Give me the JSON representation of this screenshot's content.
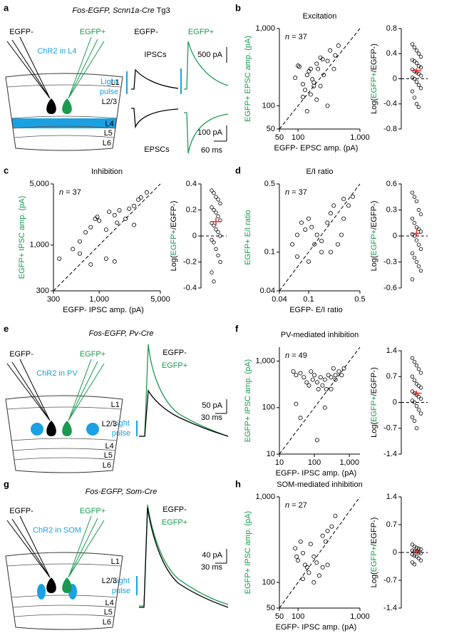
{
  "chart_data": [
    {
      "type": "scatter",
      "panel": "b",
      "title": "Excitation",
      "annotation": [
        "n",
        " = 37"
      ],
      "xlabel": "EGFP- EPSC amp. (pA)",
      "ylabel": "EGFP+ EPSC amp. (pA)",
      "log_scale": true,
      "identity_line": true,
      "xlim": [
        50,
        1000
      ],
      "ylim": [
        50,
        1000
      ],
      "xticks": [
        50,
        100,
        {
          "value": 1000,
          "label": "1,000"
        }
      ],
      "yticks": [
        50,
        100,
        {
          "value": 1000,
          "label": "1,000"
        }
      ],
      "x": [
        100,
        105,
        90,
        120,
        130,
        140,
        150,
        160,
        170,
        180,
        200,
        210,
        230,
        250,
        300,
        330,
        400,
        450,
        120,
        160,
        200,
        140,
        300,
        230,
        380,
        180,
        260
      ],
      "values": [
        330,
        320,
        230,
        190,
        160,
        250,
        280,
        300,
        220,
        180,
        350,
        300,
        420,
        400,
        380,
        520,
        450,
        600,
        130,
        140,
        120,
        85,
        100,
        180,
        300,
        200,
        250
      ]
    },
    {
      "type": "strip",
      "ylabel_parts": [
        "Log(",
        "EGFP+",
        "/EGFP-)"
      ],
      "ylim": [
        -0.8,
        0.8
      ],
      "yticks": [
        -0.8,
        -0.4,
        0,
        0.4,
        0.8
      ],
      "reference_line": 0,
      "mean": 0.13,
      "sem": 0.04,
      "values": [
        0.55,
        0.5,
        0.45,
        0.4,
        0.35,
        0.3,
        0.28,
        0.25,
        0.2,
        0.18,
        0.15,
        0.12,
        0.1,
        0.08,
        0.05,
        0.02,
        0,
        -0.05,
        -0.1,
        -0.15,
        -0.2,
        -0.3,
        -0.4,
        -0.45
      ]
    },
    {
      "type": "scatter",
      "panel": "c",
      "title": "Inhibition",
      "annotation": [
        "n",
        " = 37"
      ],
      "xlabel": "EGFP- IPSC amp. (pA)",
      "ylabel": "EGFP+ IPSC amp. (pA)",
      "log_scale": true,
      "identity_line": true,
      "xlim": [
        300,
        5000
      ],
      "ylim": [
        300,
        5000
      ],
      "xticks": [
        300,
        {
          "value": 1000,
          "label": "1,000"
        },
        {
          "value": 5000,
          "label": "5,000"
        }
      ],
      "yticks": [
        300,
        {
          "value": 1000,
          "label": "1,000"
        },
        {
          "value": 5000,
          "label": "5,000"
        }
      ],
      "x": [
        350,
        500,
        600,
        700,
        800,
        900,
        950,
        1000,
        1200,
        1300,
        1500,
        1600,
        1700,
        2000,
        2200,
        2500,
        2800,
        3000,
        3500,
        1200,
        1500,
        800,
        600,
        2500
      ],
      "values": [
        700,
        900,
        1100,
        1400,
        1600,
        2000,
        2100,
        1900,
        1500,
        2400,
        2200,
        1800,
        2500,
        2000,
        2600,
        2800,
        3300,
        3500,
        4000,
        700,
        650,
        600,
        800,
        1700
      ]
    },
    {
      "type": "strip",
      "ylabel_parts": [
        "Log(",
        "EGFP+",
        "/EGFP-)"
      ],
      "ylim": [
        -0.4,
        0.4
      ],
      "yticks": [
        -0.4,
        -0.2,
        0,
        0.2,
        0.4
      ],
      "reference_line": 0,
      "mean": 0.11,
      "sem": 0.03,
      "values": [
        0.35,
        0.33,
        0.3,
        0.28,
        0.25,
        0.22,
        0.2,
        0.18,
        0.15,
        0.12,
        0.1,
        0.08,
        0.05,
        0.03,
        0,
        -0.03,
        -0.05,
        -0.1,
        -0.15,
        -0.2,
        -0.28,
        -0.35
      ]
    },
    {
      "type": "scatter",
      "panel": "d",
      "title": "E/I ratio",
      "annotation": [
        "n",
        " = 37"
      ],
      "xlabel": "EGFP- E/I ratio",
      "ylabel": "EGFP+ E/I ratio",
      "log_scale": true,
      "identity_line": true,
      "xlim": [
        0.04,
        0.5
      ],
      "ylim": [
        0.04,
        0.5
      ],
      "xticks": [
        0.04,
        0.1,
        0.5
      ],
      "yticks": [
        0.04,
        0.1,
        0.5
      ],
      "x": [
        0.07,
        0.08,
        0.09,
        0.1,
        0.11,
        0.12,
        0.13,
        0.15,
        0.18,
        0.2,
        0.22,
        0.25,
        0.3,
        0.35,
        0.4,
        0.06,
        0.07,
        0.1,
        0.15,
        0.2,
        0.28,
        0.3
      ],
      "values": [
        0.15,
        0.2,
        0.17,
        0.22,
        0.18,
        0.12,
        0.15,
        0.1,
        0.2,
        0.25,
        0.3,
        0.12,
        0.35,
        0.3,
        0.37,
        0.12,
        0.09,
        0.08,
        0.13,
        0.1,
        0.15,
        0.22
      ]
    },
    {
      "type": "strip",
      "ylabel_parts": [
        "Log(",
        "EGFP+",
        "/EGFP-)"
      ],
      "ylim": [
        -0.6,
        0.6
      ],
      "yticks": [
        -0.6,
        -0.3,
        0,
        0.3,
        0.6
      ],
      "reference_line": 0,
      "mean": 0.03,
      "sem": 0.04,
      "values": [
        0.5,
        0.45,
        0.4,
        0.3,
        0.25,
        0.2,
        0.15,
        0.1,
        0.08,
        0.05,
        0.02,
        0,
        -0.05,
        -0.1,
        -0.15,
        -0.2,
        -0.25,
        -0.3,
        -0.35,
        -0.4,
        -0.5
      ]
    },
    {
      "type": "scatter",
      "panel": "f",
      "title": "PV-mediated inhibition",
      "annotation": [
        "n",
        " = 49"
      ],
      "xlabel": "EGFP- IPSC amp. (pA)",
      "ylabel": "EGFP+ IPSC amp. (pA)",
      "log_scale": true,
      "identity_line": true,
      "xlim": [
        10,
        2000
      ],
      "ylim": [
        10,
        2000
      ],
      "xticks": [
        10,
        100,
        {
          "value": 1000,
          "label": "1,000"
        }
      ],
      "yticks": [
        10,
        100,
        {
          "value": 1000,
          "label": "1,000"
        }
      ],
      "x": [
        25,
        30,
        40,
        50,
        60,
        70,
        80,
        90,
        100,
        120,
        130,
        150,
        170,
        200,
        220,
        250,
        300,
        350,
        400,
        500,
        600,
        700,
        30,
        40,
        120,
        200,
        300,
        400
      ],
      "values": [
        600,
        500,
        550,
        450,
        350,
        300,
        600,
        400,
        500,
        350,
        250,
        450,
        300,
        400,
        250,
        500,
        450,
        700,
        500,
        600,
        500,
        700,
        120,
        60,
        20,
        100,
        250,
        400
      ]
    },
    {
      "type": "strip",
      "ylabel_parts": [
        "Log(",
        "EGFP+",
        "/EGFP-)"
      ],
      "ylim": [
        -1.4,
        1.4
      ],
      "yticks": [
        -1.4,
        -0.7,
        0,
        0.7,
        1.4
      ],
      "reference_line": 0,
      "mean": 0.25,
      "sem": 0.07,
      "values": [
        1.2,
        1.1,
        1.0,
        0.9,
        0.8,
        0.7,
        0.6,
        0.5,
        0.45,
        0.4,
        0.3,
        0.25,
        0.2,
        0.15,
        0.1,
        0.05,
        0,
        -0.1,
        -0.2,
        -0.3,
        -0.4,
        -0.5,
        -0.7
      ]
    },
    {
      "type": "scatter",
      "panel": "h",
      "title": "SOM-mediated inhibition",
      "annotation": [
        "n",
        " = 27"
      ],
      "xlabel": "EGFP- IPSC amp. (pA)",
      "ylabel": "EGFP+ IPSC amp. (pA)",
      "log_scale": true,
      "identity_line": true,
      "xlim": [
        50,
        1000
      ],
      "ylim": [
        50,
        1000
      ],
      "xticks": [
        50,
        100,
        {
          "value": 1000,
          "label": "1,000"
        }
      ],
      "yticks": [
        50,
        100,
        {
          "value": 1000,
          "label": "1,000"
        }
      ],
      "x": [
        90,
        95,
        100,
        110,
        120,
        130,
        140,
        150,
        160,
        180,
        200,
        250,
        280,
        300,
        350,
        400,
        120,
        180,
        220,
        250,
        300
      ],
      "values": [
        250,
        200,
        180,
        300,
        220,
        160,
        150,
        130,
        280,
        200,
        170,
        350,
        300,
        400,
        450,
        600,
        110,
        100,
        120,
        150,
        160
      ]
    },
    {
      "type": "strip",
      "ylabel_parts": [
        "Log(",
        "EGFP+",
        "/EGFP-)"
      ],
      "ylim": [
        -1.4,
        1.4
      ],
      "yticks": [
        -1.4,
        -0.7,
        0,
        0.7,
        1.4
      ],
      "reference_line": 0,
      "mean": 0.02,
      "sem": 0.04,
      "values": [
        0.2,
        0.15,
        0.12,
        0.1,
        0.08,
        0.05,
        0.03,
        0.02,
        0,
        -0.02,
        -0.05,
        -0.08,
        -0.1,
        -0.15,
        -0.2,
        -0.25,
        -0.3
      ]
    }
  ],
  "diagrams": [
    {
      "panel": "a",
      "title": [
        "Fos-EGFP, Scnn1a-Cre",
        " Tg3"
      ],
      "electrodes": [
        "EGFP-",
        "EGFP+"
      ],
      "opsin": "ChR2 in L4",
      "layers": [
        "L1",
        "L2/3",
        "L4",
        "L5",
        "L6"
      ],
      "traces": {
        "columns": [
          "EGFP-",
          "EGFP+"
        ],
        "rows": [
          "IPSCs",
          "EPSCs"
        ],
        "stimulus": [
          "Light",
          "pulse"
        ],
        "scale": [
          "500 pA",
          "100 pA",
          "60 ms"
        ]
      }
    },
    {
      "panel": "e",
      "title": [
        "Fos-EGFP, Pv-Cre"
      ],
      "electrodes": [
        "EGFP-",
        "EGFP+"
      ],
      "opsin": "ChR2 in PV",
      "layers": [
        "L1",
        "L2/3",
        "L4",
        "L5",
        "L6"
      ],
      "traces": {
        "legend": [
          "EGFP-",
          "EGFP+"
        ],
        "stimulus": [
          "Light",
          "pulse"
        ],
        "scale": [
          "50 pA",
          "30 ms"
        ]
      }
    },
    {
      "panel": "g",
      "title": [
        "Fos-EGFP, Som-Cre"
      ],
      "electrodes": [
        "EGFP-",
        "EGFP+"
      ],
      "opsin": "ChR2 in SOM",
      "layers": [
        "L1",
        "L2/3",
        "L4",
        "L5",
        "L6"
      ],
      "traces": {
        "legend": [
          "EGFP-",
          "EGFP+"
        ],
        "stimulus": [
          "Light",
          "pulse"
        ],
        "scale": [
          "40 pA",
          "30 ms"
        ]
      }
    }
  ]
}
